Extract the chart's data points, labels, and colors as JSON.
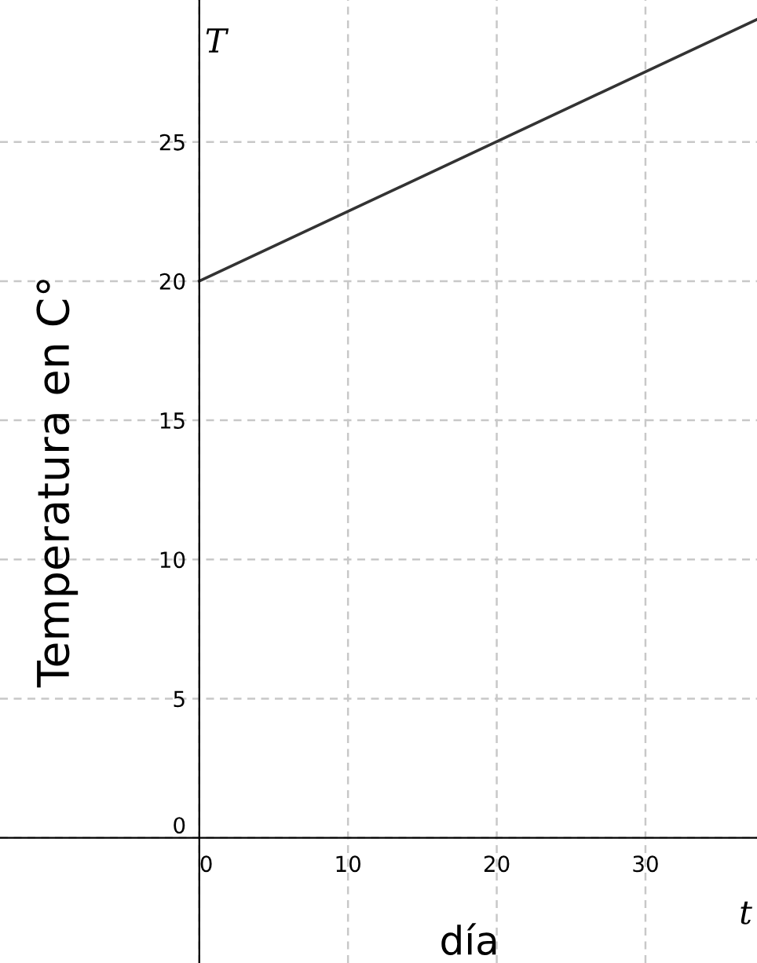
{
  "chart_data": {
    "type": "line",
    "xlabel": "día",
    "ylabel": "Temperatura en C°",
    "annotations": [
      "T",
      "t"
    ],
    "x": [
      0,
      37.5
    ],
    "series": [
      {
        "color": "#333333",
        "values": [
          20,
          29.4
        ]
      }
    ],
    "xlim": [
      -13.4,
      37.5
    ],
    "ylim": [
      -4.5,
      30.1
    ],
    "xticks": [
      0,
      10,
      20,
      30
    ],
    "yticks": [
      0,
      5,
      10,
      15,
      20,
      25
    ],
    "grid": true,
    "line_style": "solid",
    "marker": "none"
  }
}
